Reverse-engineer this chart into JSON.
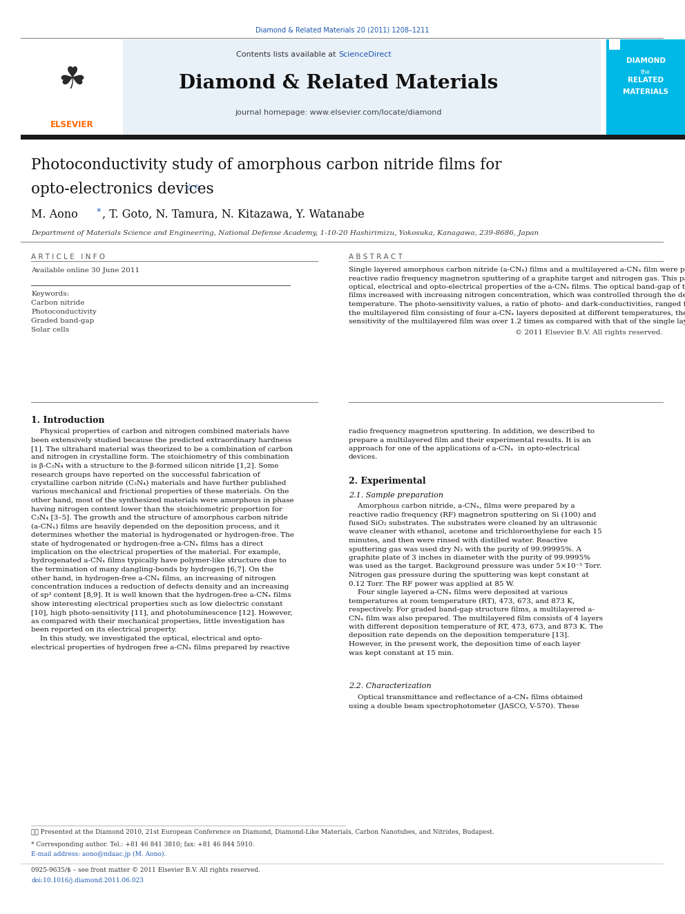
{
  "page_width": 9.92,
  "page_height": 13.23,
  "bg_color": "#ffffff",
  "journal_ref_text": "Diamond & Related Materials 20 (2011) 1208–1211",
  "journal_ref_color": "#1a56b0",
  "contents_text": "Contents lists available at ",
  "science_direct_text": "ScienceDirect",
  "journal_name": "Diamond & Related Materials",
  "journal_homepage": "journal homepage: www.elsevier.com/locate/diamond",
  "header_bg": "#e8f0f8",
  "banner_bg": "#00b8e6",
  "banner_text_line1": "DIAMOND",
  "banner_text_line2": "the",
  "banner_text_line3": "RELATED",
  "banner_text_line4": "MATERIALS",
  "thick_bar_color": "#1a1a1a",
  "paper_title_line1": "Photoconductivity study of amorphous carbon nitride films for",
  "paper_title_line2": "opto-electronics devices",
  "authors": "M. Aono ∗, T. Goto, N. Tamura, N. Kitazawa, Y. Watanabe",
  "affiliation": "Department of Materials Science and Engineering, National Defense Academy, 1-10-20 Hashirimizu, Yokosuka, Kanagawa, 239-8686, Japan",
  "article_info_header": "A R T I C L E   I N F O",
  "abstract_header": "A B S T R A C T",
  "available_online": "Available online 30 June 2011",
  "keywords_label": "Keywords:",
  "keywords": [
    "Carbon nitride",
    "Photoconductivity",
    "Graded band-gap",
    "Solar cells"
  ],
  "abstract_text": "Single layered amorphous carbon nitride (a-CNx) films and a multilayered a-CNx film were prepared by reactive radio frequency magnetron sputtering of a graphite target and nitrogen gas. This paper describes the optical, electrical and opto-electrical properties of the a-CNx films. The optical band-gap of the single layered films increased with increasing nitrogen concentration, which was controlled through the deposition temperature. The photo-sensitivity values, a ratio of photo- and dark-conductivities, ranged from 2.2 to 6.0. In the multilayered film consisting of four a-CNx layers deposited at different temperatures, the photo-sensitivity of the multilayered film was over 1.2 times as compared with that of the single layered films.",
  "copyright": "© 2011 Elsevier B.V. All rights reserved.",
  "section1_title": "1. Introduction",
  "section2_title": "2. Experimental",
  "section21_title": "2.1. Sample preparation",
  "section22_title": "2.2. Characterization",
  "footnote1": "☆☆ Presented at the Diamond 2010, 21st European Conference on Diamond, Diamond-Like Materials, Carbon Nanotubes, and Nitrides, Budapest.",
  "footnote2": "* Corresponding author. Tel.: +81 46 841 3810; fax: +81 46 844 5910.",
  "footnote3": "E-mail address: aono@ndaac.jp (M. Aono).",
  "issn_line": "0925-9635/$ – see front matter © 2011 Elsevier B.V. All rights reserved.",
  "doi_line": "doi:10.1016/j.diamond.2011.06.023",
  "link_color": "#1a56b0",
  "text_color": "#111111"
}
